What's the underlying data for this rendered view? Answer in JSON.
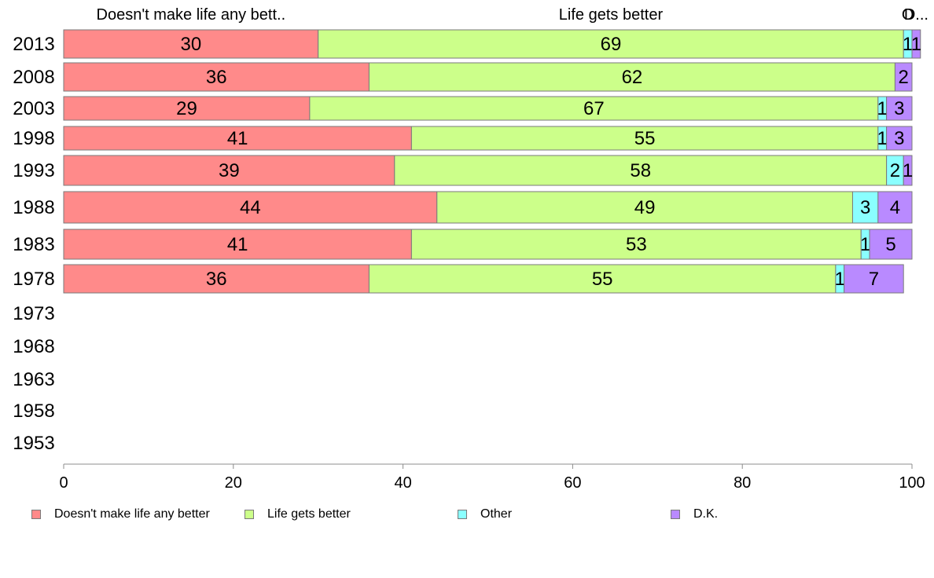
{
  "chart_data": {
    "type": "bar",
    "orientation": "horizontal",
    "stacked": true,
    "categories": [
      "2013",
      "2008",
      "2003",
      "1998",
      "1993",
      "1988",
      "1983",
      "1978",
      "1973",
      "1968",
      "1963",
      "1958",
      "1953"
    ],
    "series": [
      {
        "name": "Doesn't make life any better",
        "short_label": "Doesn't make life any bett..",
        "color": "#ff8a8a",
        "values": [
          30,
          36,
          29,
          41,
          39,
          44,
          41,
          36,
          null,
          null,
          null,
          null,
          null
        ]
      },
      {
        "name": "Life gets better",
        "short_label": "Life gets better",
        "color": "#ccff8a",
        "values": [
          69,
          62,
          67,
          55,
          58,
          49,
          53,
          55,
          null,
          null,
          null,
          null,
          null
        ]
      },
      {
        "name": "Other",
        "short_label": "O",
        "color": "#8affff",
        "values": [
          1,
          0,
          1,
          1,
          2,
          3,
          1,
          1,
          null,
          null,
          null,
          null,
          null
        ]
      },
      {
        "name": "D.K.",
        "short_label": "D...",
        "color": "#b98aff",
        "values": [
          1,
          2,
          3,
          3,
          1,
          4,
          5,
          7,
          null,
          null,
          null,
          null,
          null
        ]
      }
    ],
    "xlim": [
      0,
      100
    ],
    "xticks": [
      0,
      20,
      40,
      60,
      80,
      100
    ],
    "grid": false,
    "legend_position": "bottom"
  }
}
